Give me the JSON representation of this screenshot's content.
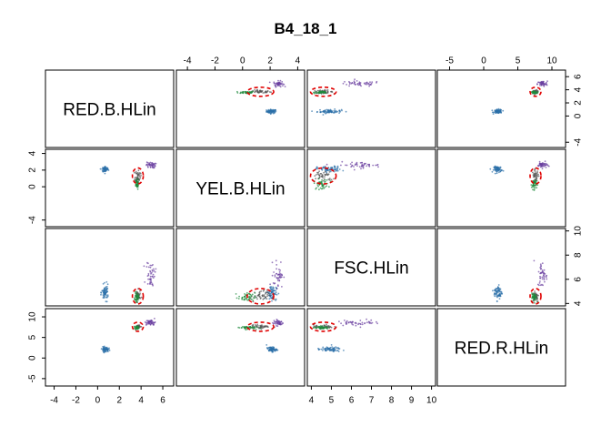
{
  "chart_data": {
    "type": "scatter",
    "title": "B4_18_1",
    "variables": [
      "RED.B.HLin",
      "YEL.B.HLin",
      "FSC.HLin",
      "RED.R.HLin"
    ],
    "axes": {
      "RED.B.HLin": {
        "range": [
          -4.8,
          7.0
        ],
        "ticks": [
          -4,
          -2,
          0,
          2,
          4,
          6
        ]
      },
      "YEL.B.HLin": {
        "range": [
          -4.8,
          4.5
        ],
        "ticks": [
          -4,
          -2,
          0,
          2,
          4
        ]
      },
      "FSC.HLin": {
        "range": [
          3.8,
          10.2
        ],
        "ticks": [
          4,
          5,
          6,
          7,
          8,
          9,
          10
        ]
      },
      "RED.R.HLin": {
        "range": [
          -6.8,
          12.0
        ],
        "ticks": [
          -5,
          0,
          5,
          10
        ]
      }
    },
    "axis_labels": {
      "top": [
        {
          "var": "YEL.B.HLin",
          "ticks": [
            -4,
            -2,
            0,
            2,
            4
          ]
        },
        {
          "var": "RED.R.HLin",
          "ticks": [
            -5,
            0,
            5,
            10
          ]
        }
      ],
      "bottom": [
        {
          "var": "RED.B.HLin",
          "ticks": [
            -4,
            -2,
            0,
            2,
            4,
            6
          ]
        },
        {
          "var": "FSC.HLin",
          "ticks": [
            4,
            5,
            6,
            7,
            8,
            9,
            10
          ]
        }
      ],
      "left": [
        {
          "var": "YEL.B.HLin",
          "ticks": [
            -4,
            0,
            2,
            4
          ]
        },
        {
          "var": "RED.R.HLin",
          "ticks": [
            -5,
            0,
            5,
            10
          ]
        }
      ],
      "right": [
        {
          "var": "RED.B.HLin",
          "ticks": [
            -4,
            0,
            2,
            4,
            6
          ]
        },
        {
          "var": "FSC.HLin",
          "ticks": [
            4,
            6,
            8,
            10
          ]
        }
      ]
    },
    "clusters": [
      {
        "group": "blue",
        "center": {
          "RED.B.HLin": 0.7,
          "YEL.B.HLin": 2.1,
          "FSC.HLin": 4.9,
          "RED.R.HLin": 2.1
        },
        "spread": {
          "RED.B.HLin": 0.25,
          "YEL.B.HLin": 0.3,
          "FSC.HLin": 0.5,
          "RED.R.HLin": 0.5
        }
      },
      {
        "group": "gray",
        "center": {
          "RED.B.HLin": 3.7,
          "YEL.B.HLin": 1.3,
          "FSC.HLin": 4.6,
          "RED.R.HLin": 7.6
        },
        "spread": {
          "RED.B.HLin": 0.2,
          "YEL.B.HLin": 0.6,
          "FSC.HLin": 0.4,
          "RED.R.HLin": 0.4
        }
      },
      {
        "group": "green",
        "center": {
          "RED.B.HLin": 3.6,
          "YEL.B.HLin": 0.3,
          "FSC.HLin": 4.5,
          "RED.R.HLin": 7.4
        },
        "spread": {
          "RED.B.HLin": 0.15,
          "YEL.B.HLin": 0.5,
          "FSC.HLin": 0.3,
          "RED.R.HLin": 0.3
        }
      },
      {
        "group": "purple",
        "center": {
          "RED.B.HLin": 4.9,
          "YEL.B.HLin": 2.6,
          "FSC.HLin": 6.4,
          "RED.R.HLin": 8.6
        },
        "spread": {
          "RED.B.HLin": 0.35,
          "YEL.B.HLin": 0.3,
          "FSC.HLin": 0.9,
          "RED.R.HLin": 0.6
        }
      }
    ],
    "gate_color": "#e00000",
    "colors": {
      "blue": "#2b6fa8",
      "gray": "#555555",
      "green": "#1e8a3c",
      "purple": "#6a3fa0"
    }
  }
}
